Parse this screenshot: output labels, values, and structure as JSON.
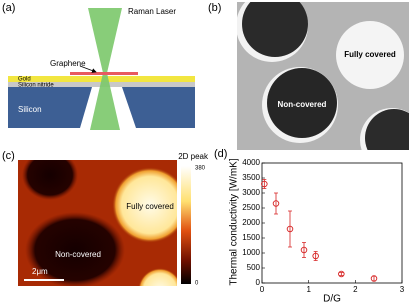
{
  "panels": {
    "a": {
      "label": "(a)",
      "laser": "Raman Laser",
      "graphene": "Graphene",
      "gold": "Gold",
      "nitride": "Silicon nitride",
      "silicon": "Silicon"
    },
    "b": {
      "label": "(b)",
      "covered": "Fully covered",
      "uncovered": "Non-covered"
    },
    "c": {
      "label": "(c)",
      "colorbar": {
        "title": "2D peak",
        "max": 380,
        "min": 0
      },
      "scale": "2μm",
      "covered": "Fully covered",
      "uncovered": "Non-covered"
    },
    "d": {
      "label": "(d)"
    }
  },
  "chart_data": {
    "type": "scatter",
    "xlabel": "D/G",
    "ylabel": "Thermal conductivity [W/mK]",
    "x": [
      0.05,
      0.3,
      0.6,
      0.9,
      1.15,
      1.7,
      2.4
    ],
    "values": [
      3300,
      2650,
      1800,
      1100,
      900,
      300,
      150
    ],
    "errors": [
      150,
      350,
      600,
      250,
      150,
      50,
      80
    ],
    "color": "#d62020",
    "xlim": [
      0,
      3
    ],
    "xticks": [
      0,
      1,
      2,
      3
    ],
    "ylim": [
      0,
      4000
    ],
    "yticks": [
      0,
      500,
      1000,
      1500,
      2000,
      2500,
      3000,
      3500,
      4000
    ]
  }
}
